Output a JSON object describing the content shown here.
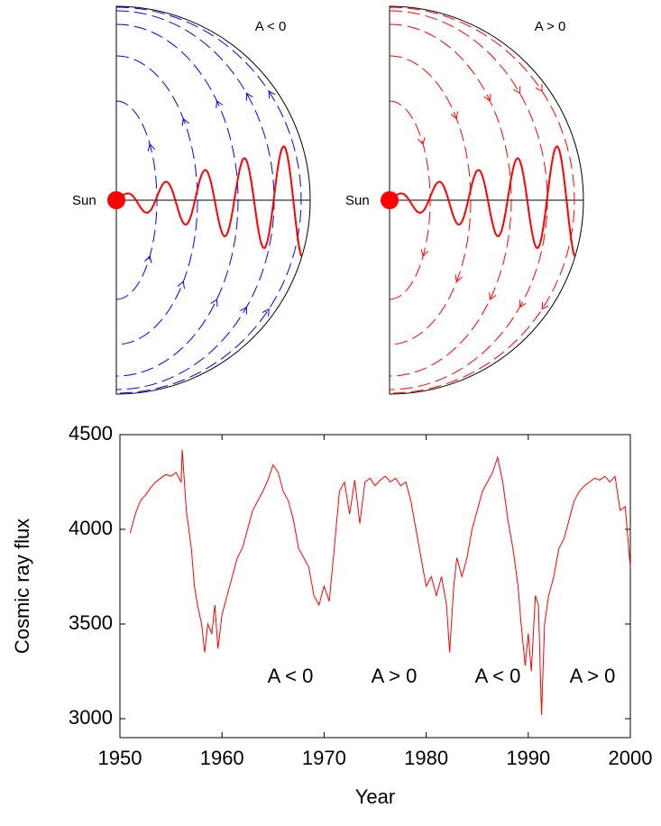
{
  "diagrams": [
    {
      "label": "A < 0",
      "sun_label": "Sun"
    },
    {
      "label": "A > 0",
      "sun_label": "Sun"
    }
  ],
  "chart_data": {
    "type": "line",
    "xlabel": "Year",
    "ylabel": "Cosmic ray flux",
    "color": "#ff0000",
    "x": [
      1951,
      1951.5,
      1952,
      1952.5,
      1953,
      1953.5,
      1954,
      1954.5,
      1955,
      1955.5,
      1956,
      1956.1,
      1956.5,
      1957,
      1957.3,
      1957.6,
      1958,
      1958.3,
      1958.6,
      1959,
      1959.3,
      1959.6,
      1960,
      1960.5,
      1961,
      1961.5,
      1962,
      1962.5,
      1963,
      1963.5,
      1964,
      1964.5,
      1965,
      1965.5,
      1966,
      1966.5,
      1967,
      1967.5,
      1968,
      1968.5,
      1969,
      1969.5,
      1970,
      1970.5,
      1971,
      1971.5,
      1972,
      1972.5,
      1973,
      1973.5,
      1974,
      1974.5,
      1975,
      1975.5,
      1976,
      1976.5,
      1977,
      1977.5,
      1978,
      1978.5,
      1979,
      1979.5,
      1980,
      1980.5,
      1981,
      1981.5,
      1982,
      1982.3,
      1982.7,
      1983,
      1983.5,
      1984,
      1984.5,
      1985,
      1985.5,
      1986,
      1986.5,
      1987,
      1987.5,
      1988,
      1988.5,
      1989,
      1989.3,
      1989.7,
      1990,
      1990.3,
      1990.7,
      1991,
      1991.3,
      1991.6,
      1992,
      1992.5,
      1993,
      1993.5,
      1994,
      1994.5,
      1995,
      1995.5,
      1996,
      1996.5,
      1997,
      1997.5,
      1998,
      1998.5,
      1999,
      1999.5,
      2000
    ],
    "values": [
      3980,
      4080,
      4150,
      4180,
      4220,
      4250,
      4270,
      4290,
      4280,
      4300,
      4250,
      4420,
      4100,
      3900,
      3700,
      3600,
      3500,
      3350,
      3500,
      3450,
      3600,
      3370,
      3550,
      3650,
      3750,
      3850,
      3900,
      4000,
      4100,
      4150,
      4200,
      4260,
      4340,
      4300,
      4200,
      4150,
      4050,
      3900,
      3850,
      3800,
      3650,
      3600,
      3700,
      3620,
      3900,
      4200,
      4250,
      4080,
      4260,
      4030,
      4250,
      4270,
      4230,
      4260,
      4280,
      4250,
      4270,
      4230,
      4250,
      4150,
      4000,
      3850,
      3700,
      3750,
      3650,
      3750,
      3600,
      3350,
      3700,
      3850,
      3750,
      3850,
      4000,
      4100,
      4200,
      4250,
      4300,
      4380,
      4250,
      4050,
      3900,
      3700,
      3500,
      3280,
      3450,
      3250,
      3650,
      3600,
      3020,
      3500,
      3650,
      3750,
      3900,
      3950,
      4050,
      4150,
      4200,
      4230,
      4250,
      4270,
      4260,
      4280,
      4250,
      4280,
      4100,
      4120,
      3800
    ],
    "xlim": [
      1950,
      2000
    ],
    "ylim": [
      2900,
      4500
    ],
    "xticks": [
      1950,
      1960,
      1970,
      1980,
      1990,
      2000
    ],
    "yticks": [
      3000,
      3500,
      4000,
      4500
    ],
    "annotations": [
      "A < 0",
      "A > 0",
      "A < 0",
      "A > 0"
    ],
    "grid": false
  }
}
